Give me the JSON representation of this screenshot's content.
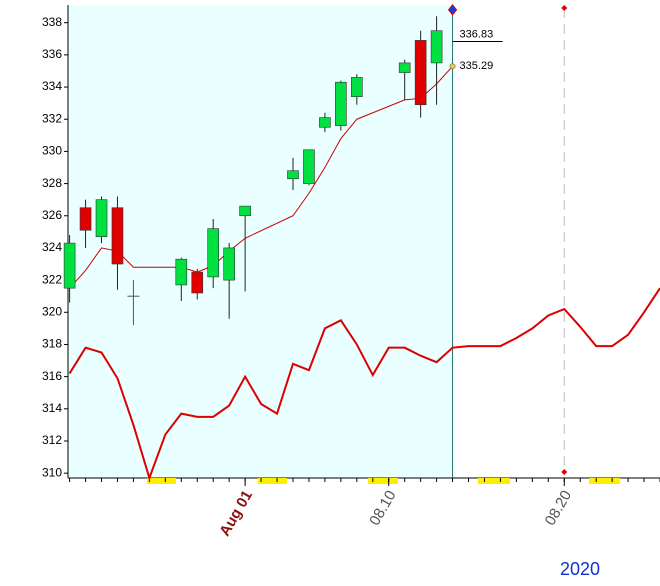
{
  "chart_data": {
    "type": "candlestick",
    "xlabel": "2020",
    "xlim": [
      -0.1,
      37
    ],
    "ylim": [
      309.7,
      339.1
    ],
    "yticks": [
      310,
      312,
      314,
      316,
      318,
      320,
      322,
      324,
      326,
      328,
      330,
      332,
      334,
      336,
      338
    ],
    "xticks": [
      {
        "value": 11,
        "label": "Aug 01"
      },
      {
        "value": 20,
        "label": "08.10"
      },
      {
        "value": 31,
        "label": "08.20"
      }
    ],
    "up_color": "#00e040",
    "down_color": "#e00000",
    "candles": {
      "x": [
        0,
        1,
        2,
        3,
        4,
        7,
        8,
        9,
        10,
        11,
        14,
        15,
        16,
        17,
        18,
        21,
        22,
        23
      ],
      "open": [
        321.5,
        326.5,
        324.7,
        326.5,
        321,
        321.7,
        322.5,
        322.2,
        322,
        326,
        328.3,
        328,
        331.5,
        331.6,
        333.4,
        334.9,
        336.9,
        335.5
      ],
      "high": [
        324.8,
        327,
        327.2,
        327.2,
        322,
        323.4,
        322.7,
        325.8,
        324.3,
        326.6,
        329.6,
        330.1,
        332.4,
        334.4,
        334.8,
        335.7,
        337.5,
        338.4
      ],
      "low": [
        320.6,
        324,
        324.3,
        321.4,
        319.2,
        320.7,
        320.8,
        321.5,
        319.6,
        321.3,
        327.6,
        327.9,
        331.2,
        331.3,
        332.9,
        333.2,
        332.1,
        332.9
      ],
      "close": [
        324.3,
        325.1,
        327,
        323,
        321,
        323.3,
        321.2,
        325.2,
        324,
        326.6,
        328.8,
        330.1,
        332.1,
        334.3,
        334.6,
        335.5,
        332.9,
        337.5
      ]
    },
    "series": [
      {
        "color": "#cc0000",
        "width": 1,
        "x": [
          0,
          1,
          2,
          3,
          4,
          7,
          8,
          9,
          10,
          11,
          14,
          15,
          16,
          17,
          18,
          21,
          22,
          23,
          24
        ],
        "values": [
          321.5,
          322.6,
          324,
          323.8,
          322.8,
          322.8,
          322.5,
          322.9,
          323.8,
          324.6,
          326,
          327.4,
          329,
          330.8,
          332,
          333.2,
          333.3,
          334.2,
          335.29
        ]
      },
      {
        "color": "#dd0000",
        "width": 2,
        "x": [
          0,
          1,
          2,
          3,
          4,
          5,
          6,
          7,
          8,
          9,
          10,
          11,
          12,
          13,
          14,
          15,
          16,
          17,
          18,
          19,
          20,
          21,
          22,
          23,
          24,
          25,
          26,
          27,
          28,
          29,
          30,
          31,
          32,
          33,
          34,
          35,
          36,
          37
        ],
        "values": [
          316.2,
          317.8,
          317.5,
          315.9,
          313,
          309.7,
          312.4,
          313.7,
          313.5,
          313.5,
          314.2,
          316,
          314.3,
          313.7,
          316.8,
          316.4,
          319,
          319.5,
          318,
          316.1,
          317.8,
          317.8,
          317.3,
          316.9,
          317.8,
          317.9,
          317.9,
          317.9,
          318.4,
          319,
          319.8,
          320.2,
          319.1,
          317.9,
          317.9,
          318.6,
          320,
          321.5
        ]
      }
    ],
    "cursor": {
      "x": 24,
      "marker": 338.8
    },
    "annotations": [
      {
        "text": "336.83",
        "value": 336.83
      },
      {
        "text": "335.29",
        "value": 335.29
      }
    ],
    "dashed_x": 31
  }
}
